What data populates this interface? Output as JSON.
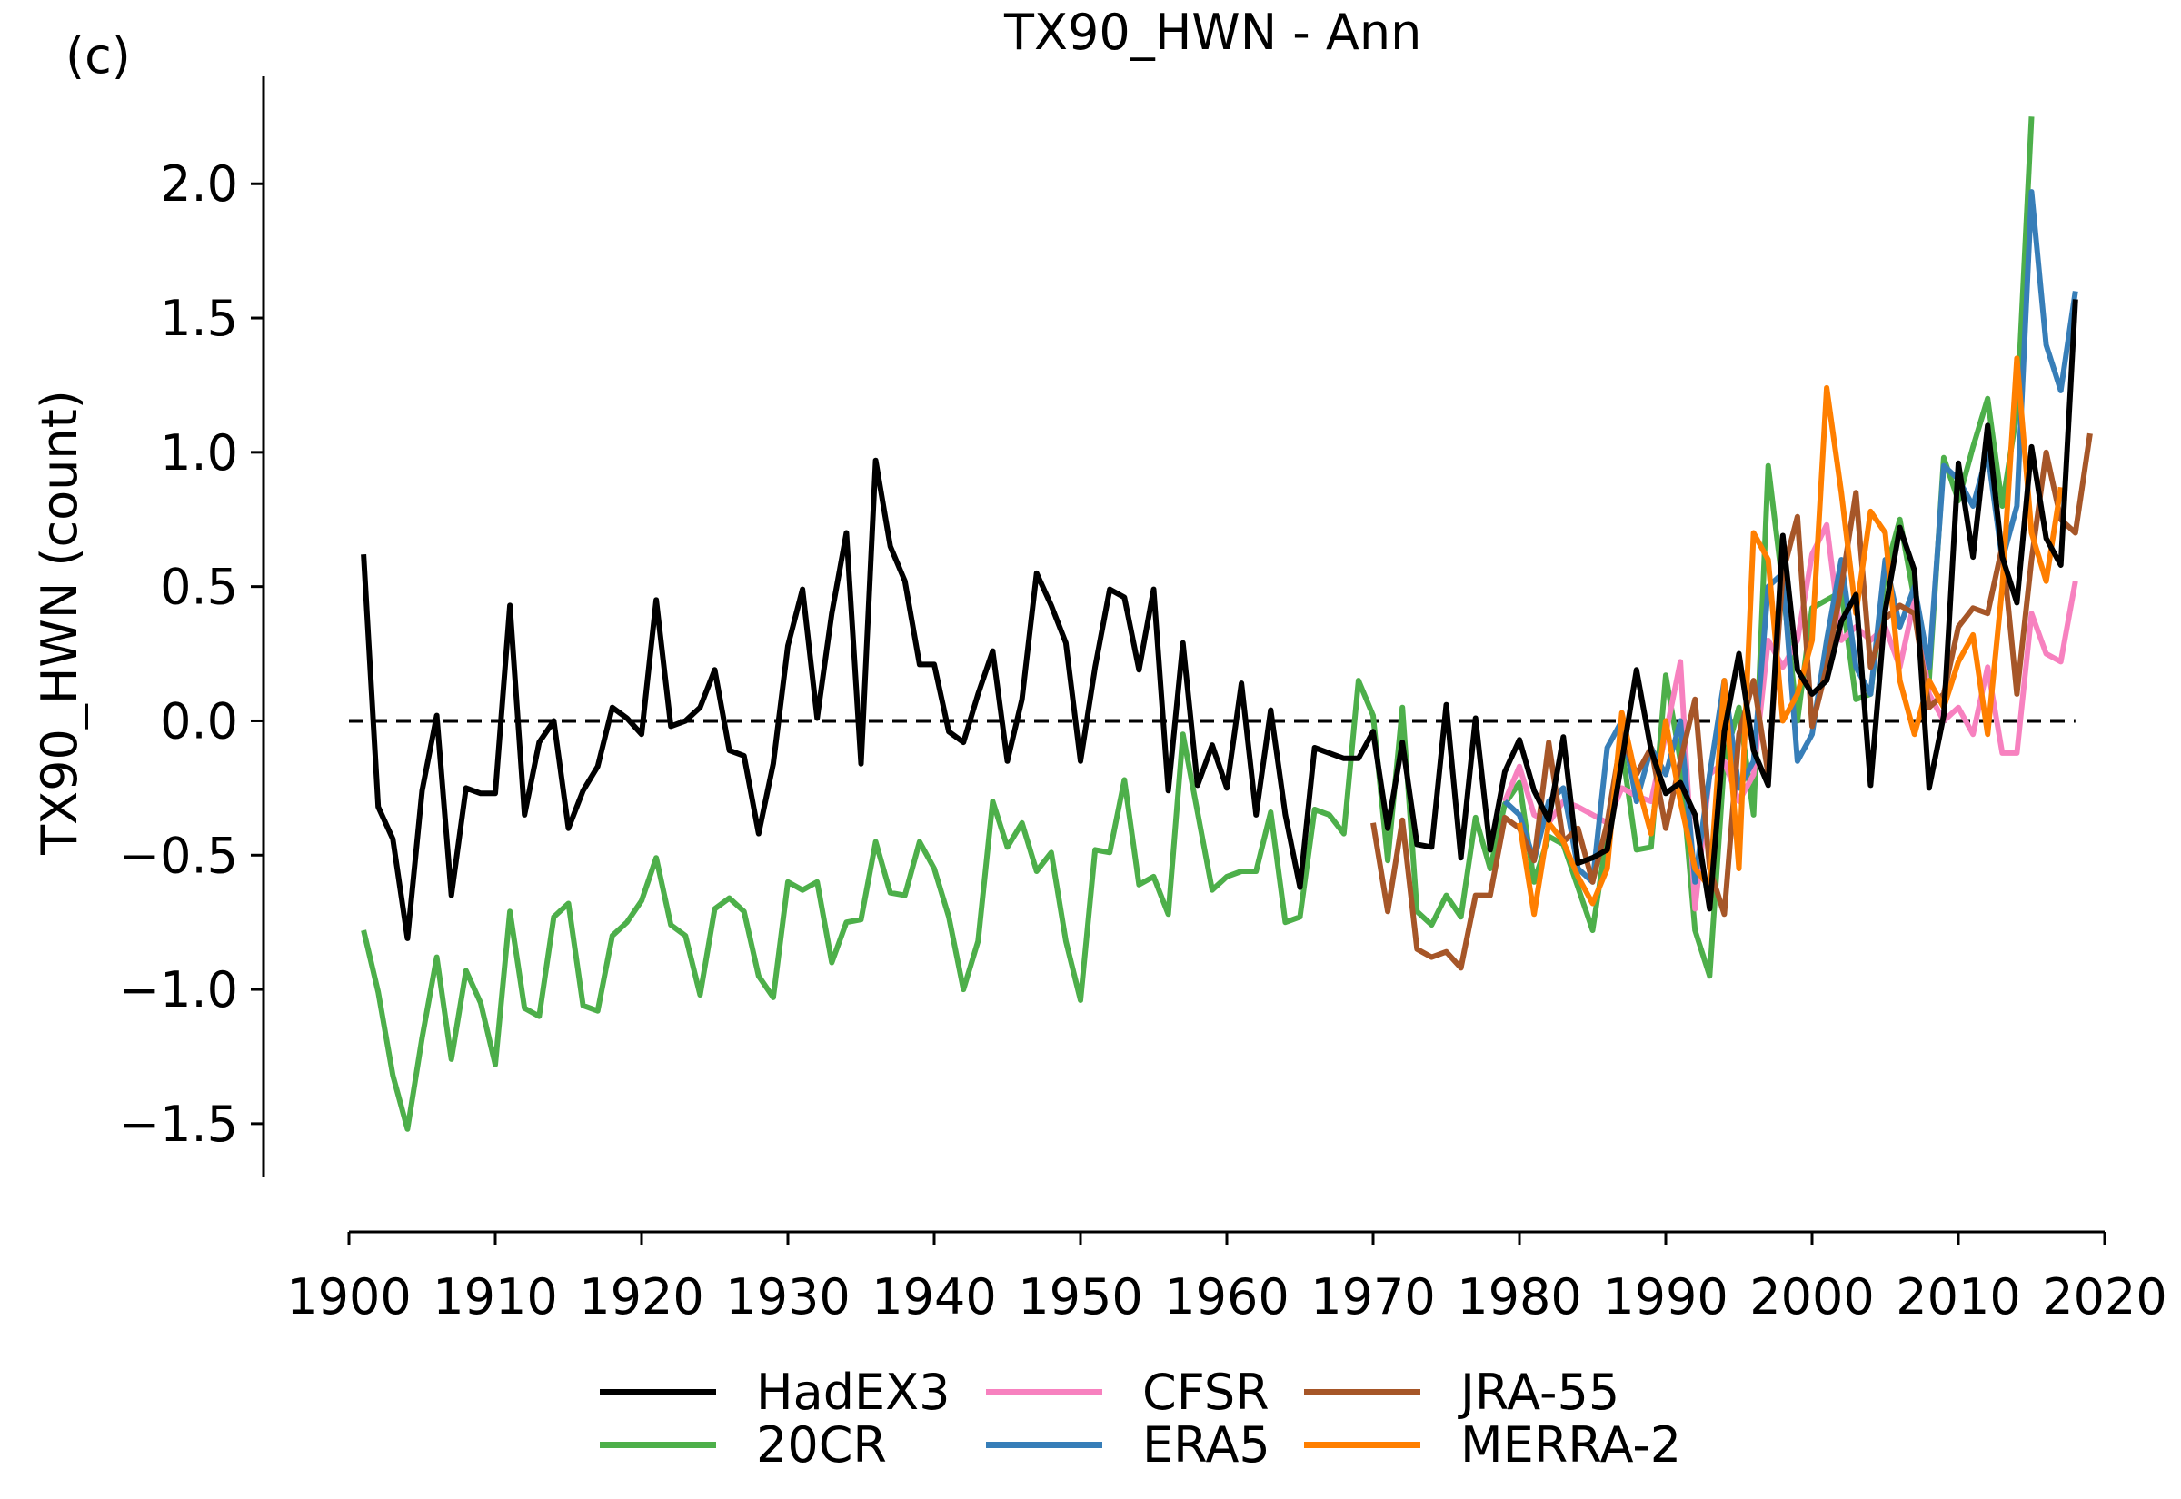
{
  "panel_label": "(c)",
  "chart_data": {
    "type": "line",
    "title": "TX90_HWN - Ann",
    "xlabel": "",
    "ylabel": "TX90_HWN (count)",
    "xlim": [
      1900,
      2020
    ],
    "ylim": [
      -1.7,
      2.4
    ],
    "x_ticks": [
      1900,
      1910,
      1920,
      1930,
      1940,
      1950,
      1960,
      1970,
      1980,
      1990,
      2000,
      2010,
      2020
    ],
    "y_ticks": [
      -1.5,
      -1.0,
      -0.5,
      0.0,
      0.5,
      1.0,
      1.5,
      2.0
    ],
    "y_tick_labels": [
      "−1.5",
      "−1.0",
      "−0.5",
      "0.0",
      "0.5",
      "1.0",
      "1.5",
      "2.0"
    ],
    "reference_line": {
      "y": 0.0,
      "style": "dashed",
      "color": "#000000"
    },
    "grid": false,
    "legend_position": "bottom",
    "series": [
      {
        "name": "20CR",
        "color": "#4daf4a",
        "start_year": 1901,
        "values": [
          -0.78,
          -1.01,
          -1.32,
          -1.52,
          -1.18,
          -0.88,
          -1.26,
          -0.93,
          -1.05,
          -1.28,
          -0.71,
          -1.07,
          -1.1,
          -0.73,
          -0.68,
          -1.06,
          -1.08,
          -0.8,
          -0.75,
          -0.67,
          -0.51,
          -0.76,
          -0.8,
          -1.02,
          -0.7,
          -0.66,
          -0.71,
          -0.95,
          -1.03,
          -0.6,
          -0.63,
          -0.6,
          -0.9,
          -0.75,
          -0.74,
          -0.45,
          -0.64,
          -0.65,
          -0.45,
          -0.55,
          -0.73,
          -1.0,
          -0.82,
          -0.3,
          -0.47,
          -0.38,
          -0.56,
          -0.49,
          -0.82,
          -1.04,
          -0.48,
          -0.49,
          -0.22,
          -0.61,
          -0.58,
          -0.72,
          -0.05,
          -0.34,
          -0.63,
          -0.58,
          -0.56,
          -0.56,
          -0.34,
          -0.75,
          -0.73,
          -0.33,
          -0.35,
          -0.42,
          0.15,
          0.02,
          -0.52,
          0.05,
          -0.71,
          -0.76,
          -0.65,
          -0.73,
          -0.36,
          -0.55,
          -0.31,
          -0.23,
          -0.6,
          -0.43,
          -0.46,
          -0.62,
          -0.78,
          -0.42,
          -0.1,
          -0.48,
          -0.47,
          0.17,
          -0.15,
          -0.78,
          -0.95,
          -0.15,
          0.05,
          -0.35,
          0.95,
          0.5,
          0.0,
          0.42,
          0.45,
          0.48,
          0.08,
          0.1,
          0.55,
          0.75,
          0.45,
          0.15,
          0.98,
          0.82,
          1.02,
          1.2,
          0.8,
          1.15,
          2.25
        ]
      },
      {
        "name": "CFSR",
        "color": "#f781bf",
        "start_year": 1979,
        "values": [
          -0.3,
          -0.17,
          -0.35,
          -0.38,
          -0.3,
          -0.32,
          -0.35,
          -0.38,
          -0.25,
          -0.28,
          -0.3,
          -0.05,
          0.22,
          -0.7,
          -0.2,
          -0.15,
          -0.3,
          -0.2,
          0.3,
          0.2,
          0.3,
          0.62,
          0.73,
          0.3,
          0.35,
          0.3,
          0.35,
          0.2,
          0.45,
          0.1,
          0.0,
          0.05,
          -0.05,
          0.2,
          -0.12,
          -0.12,
          0.4,
          0.25,
          0.22,
          0.52
        ]
      },
      {
        "name": "ERA5",
        "color": "#377eb8",
        "start_year": 1979,
        "values": [
          -0.3,
          -0.35,
          -0.52,
          -0.3,
          -0.25,
          -0.55,
          -0.6,
          -0.1,
          0.0,
          -0.3,
          -0.1,
          -0.2,
          0.0,
          -0.6,
          -0.2,
          0.15,
          -0.25,
          -0.15,
          0.5,
          0.55,
          -0.15,
          -0.05,
          0.3,
          0.6,
          0.2,
          0.1,
          0.6,
          0.35,
          0.5,
          0.2,
          0.95,
          0.9,
          0.8,
          1.0,
          0.6,
          0.8,
          1.97,
          1.4,
          1.23,
          1.6
        ]
      },
      {
        "name": "JRA-55",
        "color": "#a65628",
        "start_year": 1970,
        "values": [
          -0.38,
          -0.71,
          -0.37,
          -0.85,
          -0.88,
          -0.86,
          -0.92,
          -0.65,
          -0.65,
          -0.36,
          -0.4,
          -0.52,
          -0.08,
          -0.45,
          -0.4,
          -0.6,
          -0.38,
          -0.05,
          -0.2,
          -0.1,
          -0.4,
          -0.15,
          0.08,
          -0.55,
          -0.72,
          -0.05,
          0.15,
          -0.2,
          0.55,
          0.76,
          -0.02,
          0.2,
          0.5,
          0.85,
          0.2,
          0.38,
          0.43,
          0.4,
          0.05,
          0.1,
          0.35,
          0.42,
          0.4,
          0.65,
          0.1,
          0.6,
          1.0,
          0.75,
          0.7,
          1.07
        ]
      },
      {
        "name": "MERRA-2",
        "color": "#ff7f00",
        "start_year": 1980,
        "values": [
          -0.38,
          -0.72,
          -0.38,
          -0.45,
          -0.58,
          -0.68,
          -0.55,
          0.03,
          -0.22,
          -0.42,
          0.0,
          -0.3,
          -0.55,
          -0.62,
          0.15,
          -0.55,
          0.7,
          0.6,
          0.0,
          0.1,
          0.3,
          1.24,
          0.85,
          0.4,
          0.78,
          0.7,
          0.15,
          -0.05,
          0.15,
          0.05,
          0.22,
          0.32,
          -0.05,
          0.5,
          1.35,
          0.7,
          0.52,
          0.87
        ]
      },
      {
        "name": "HadEX3",
        "color": "#000000",
        "start_year": 1901,
        "values": [
          0.62,
          -0.32,
          -0.44,
          -0.81,
          -0.26,
          0.02,
          -0.65,
          -0.25,
          -0.27,
          -0.27,
          0.43,
          -0.35,
          -0.08,
          0.0,
          -0.4,
          -0.26,
          -0.17,
          0.05,
          0.01,
          -0.05,
          0.45,
          -0.02,
          0.0,
          0.05,
          0.19,
          -0.11,
          -0.13,
          -0.42,
          -0.16,
          0.28,
          0.49,
          0.01,
          0.4,
          0.7,
          -0.16,
          0.97,
          0.65,
          0.52,
          0.21,
          0.21,
          -0.04,
          -0.08,
          0.1,
          0.26,
          -0.15,
          0.08,
          0.55,
          0.43,
          0.29,
          -0.15,
          0.2,
          0.49,
          0.46,
          0.19,
          0.49,
          -0.26,
          0.29,
          -0.24,
          -0.09,
          -0.25,
          0.14,
          -0.35,
          0.04,
          -0.35,
          -0.62,
          -0.1,
          -0.12,
          -0.14,
          -0.14,
          -0.04,
          -0.4,
          -0.08,
          -0.46,
          -0.47,
          0.06,
          -0.51,
          0.01,
          -0.48,
          -0.19,
          -0.07,
          -0.26,
          -0.37,
          -0.06,
          -0.53,
          -0.51,
          -0.48,
          -0.15,
          0.19,
          -0.11,
          -0.27,
          -0.23,
          -0.35,
          -0.7,
          -0.04,
          0.25,
          -0.11,
          -0.24,
          0.69,
          0.19,
          0.1,
          0.15,
          0.37,
          0.47,
          -0.24,
          0.41,
          0.72,
          0.56,
          -0.25,
          0.02,
          0.96,
          0.61,
          1.1,
          0.61,
          0.44,
          1.02,
          0.68,
          0.58,
          1.57
        ]
      }
    ]
  },
  "legend": {
    "items": [
      {
        "label": "HadEX3",
        "color": "#000000"
      },
      {
        "label": "20CR",
        "color": "#4daf4a"
      },
      {
        "label": "CFSR",
        "color": "#f781bf"
      },
      {
        "label": "ERA5",
        "color": "#377eb8"
      },
      {
        "label": "JRA-55",
        "color": "#a65628"
      },
      {
        "label": "MERRA-2",
        "color": "#ff7f00"
      }
    ]
  }
}
